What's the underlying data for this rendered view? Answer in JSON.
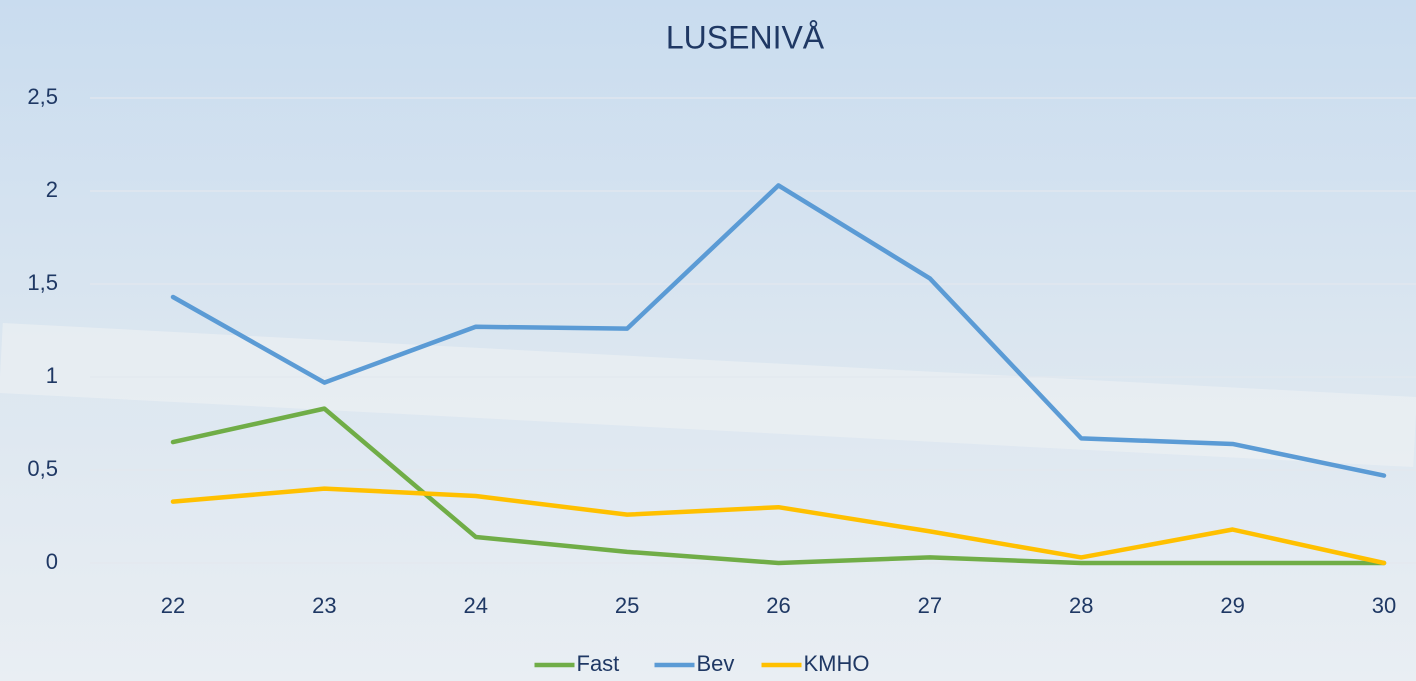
{
  "chart_data": {
    "type": "line",
    "title": "LUSENIVÅ",
    "categories": [
      "22",
      "23",
      "24",
      "25",
      "26",
      "27",
      "28",
      "29",
      "30"
    ],
    "series": [
      {
        "name": "Fast",
        "color": "#70ad47",
        "values": [
          0.65,
          0.83,
          0.14,
          0.06,
          0,
          0.03,
          0,
          0,
          0
        ]
      },
      {
        "name": "Bev",
        "color": "#5b9bd5",
        "values": [
          1.43,
          0.97,
          1.27,
          1.26,
          2.03,
          1.53,
          0.67,
          0.64,
          0.47
        ]
      },
      {
        "name": "KMHO",
        "color": "#ffc000",
        "values": [
          0.33,
          0.4,
          0.36,
          0.26,
          0.3,
          0.17,
          0.03,
          0.18,
          0
        ]
      }
    ],
    "ylim": [
      0,
      2.5
    ],
    "yticks": [
      0,
      {
        "value": 0.5,
        "label": "0,5"
      },
      1,
      {
        "value": 1.5,
        "label": "1,5"
      },
      2,
      {
        "value": 2.5,
        "label": "2,5"
      }
    ],
    "grid": true,
    "legend": "bottom"
  }
}
